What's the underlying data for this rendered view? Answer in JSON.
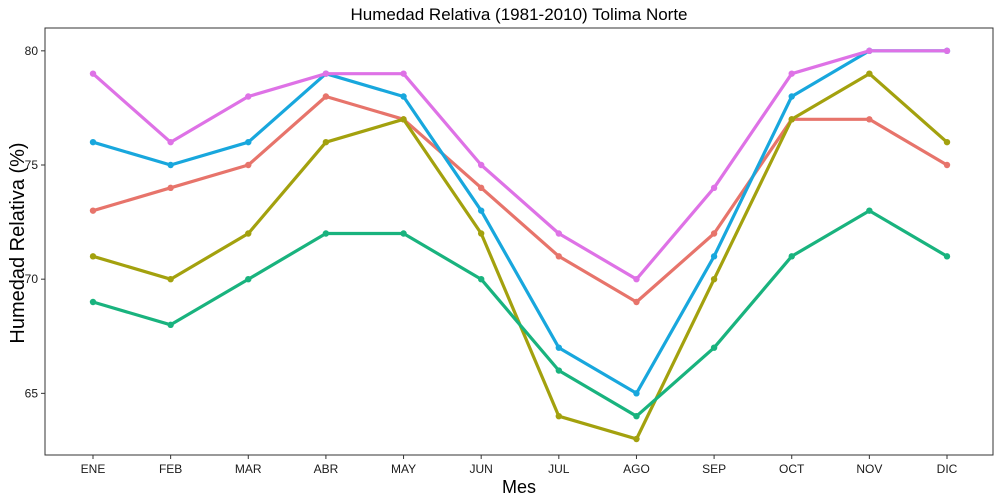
{
  "chart_data": {
    "type": "line",
    "title": "Humedad Relativa (1981-2010)  Tolima Norte",
    "xlabel": "Mes",
    "ylabel": "Humedad Relativa  (%)",
    "categories": [
      "ENE",
      "FEB",
      "MAR",
      "ABR",
      "MAY",
      "JUN",
      "JUL",
      "AGO",
      "SEP",
      "OCT",
      "NOV",
      "DIC"
    ],
    "yticks": [
      65,
      70,
      75,
      80
    ],
    "ylim": [
      62.3,
      81
    ],
    "grid": false,
    "legend": "none",
    "series": [
      {
        "color": "#e7746b",
        "values": [
          73,
          74,
          75,
          78,
          77,
          74,
          71,
          69,
          72,
          77,
          77,
          75
        ]
      },
      {
        "color": "#a3a10e",
        "values": [
          71,
          70,
          72,
          76,
          77,
          72,
          64,
          63,
          70,
          77,
          79,
          76
        ]
      },
      {
        "color": "#19b37e",
        "values": [
          69,
          68,
          70,
          72,
          72,
          70,
          66,
          64,
          67,
          71,
          73,
          71
        ]
      },
      {
        "color": "#18a7dd",
        "values": [
          76,
          75,
          76,
          79,
          78,
          73,
          67,
          65,
          71,
          78,
          80,
          80
        ]
      },
      {
        "color": "#de72e6",
        "values": [
          79,
          76,
          78,
          79,
          79,
          75,
          72,
          70,
          74,
          79,
          80,
          80
        ]
      }
    ]
  }
}
